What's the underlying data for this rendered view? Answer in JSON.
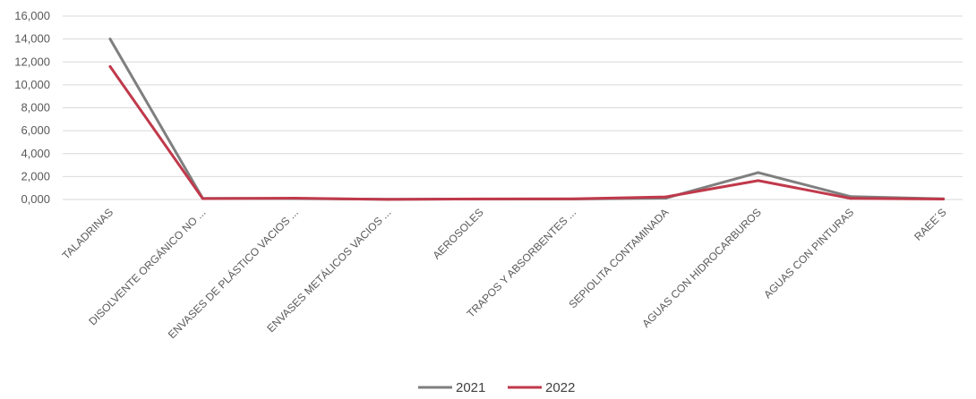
{
  "chart_data": {
    "type": "line",
    "title": "",
    "xlabel": "",
    "ylabel": "",
    "categories": [
      "TALADRINAS",
      "DISOLVENTE ORGÁNICO NO ...",
      "ENVASES DE PLÁSTICO VACIOS ...",
      "ENVASES METÁLICOS VACIOS ...",
      "AEROSOLES",
      "TRAPOS Y ABSORBENTES ...",
      "SEPIOLITA CONTAMINADA",
      "AGUAS CON HIDROCARBUROS",
      "AGUAS CON PINTURAS",
      "RAEE´S"
    ],
    "yticks": [
      "0,000",
      "2,000",
      "4,000",
      "6,000",
      "8,000",
      "10,000",
      "12,000",
      "14,000",
      "16,000"
    ],
    "ylim": [
      0,
      16000
    ],
    "grid": true,
    "legend_position": "bottom",
    "series": [
      {
        "name": "2021",
        "color": "#7f7f7f",
        "values": [
          14000,
          100,
          80,
          20,
          40,
          40,
          120,
          2350,
          250,
          60
        ]
      },
      {
        "name": "2022",
        "color": "#c0394b",
        "values": [
          11600,
          80,
          120,
          10,
          50,
          60,
          230,
          1650,
          90,
          40
        ]
      }
    ]
  }
}
